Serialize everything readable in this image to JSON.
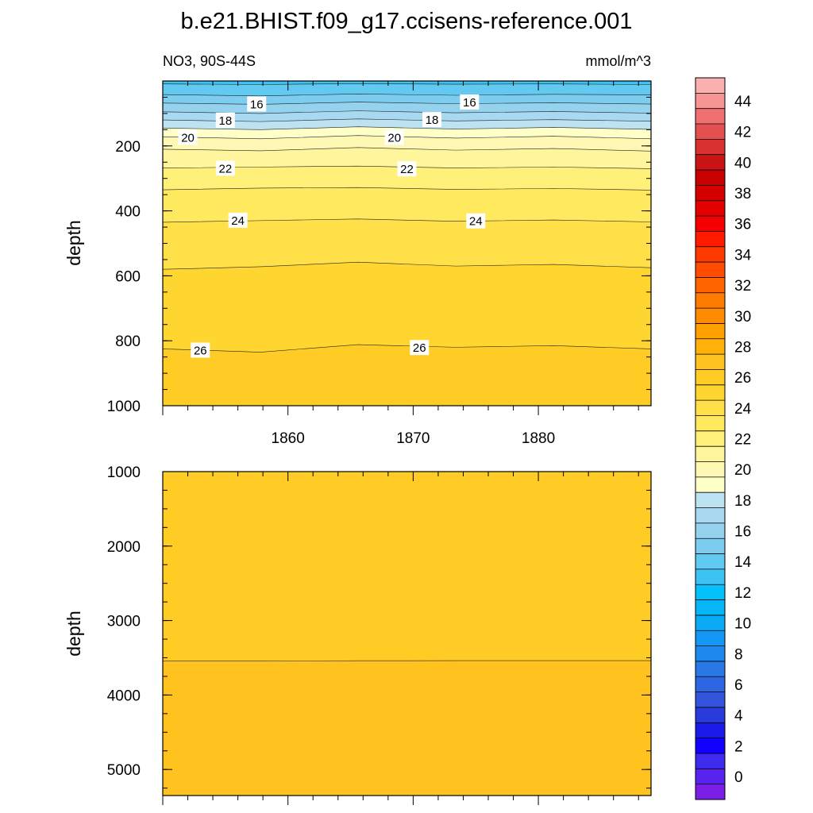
{
  "figure": {
    "title": "b.e21.BHIST.f09_g17.ccisens-reference.001",
    "left_subtitle": "NO3, 90S-44S",
    "right_subtitle": "mmol/m^3"
  },
  "chart_data": [
    {
      "type": "heatmap",
      "panel": "upper",
      "title": "b.e21.BHIST.f09_g17.ccisens-reference.001",
      "variable": "NO3",
      "region": "90S-44S",
      "units": "mmol/m^3",
      "xlabel": "",
      "ylabel": "depth",
      "xlim": [
        1850,
        1889
      ],
      "ylim": [
        1000,
        0
      ],
      "y_reversed": true,
      "x_ticks": [
        1860,
        1870,
        1880
      ],
      "y_ticks": [
        200,
        400,
        600,
        800,
        1000
      ],
      "contour_lines": [
        {
          "level": 14,
          "depth": [
            9,
            11,
            8,
            10,
            9,
            11
          ]
        },
        {
          "level": 15,
          "depth": [
            42,
            46,
            40,
            44,
            41,
            43
          ]
        },
        {
          "level": 16,
          "depth": [
            68,
            72,
            65,
            70,
            67,
            71
          ]
        },
        {
          "level": 17,
          "depth": [
            95,
            100,
            92,
            98,
            94,
            99
          ]
        },
        {
          "level": 18,
          "depth": [
            120,
            125,
            117,
            123,
            119,
            124
          ]
        },
        {
          "level": 19,
          "depth": [
            145,
            150,
            141,
            148,
            143,
            149
          ]
        },
        {
          "level": 20,
          "depth": [
            172,
            178,
            168,
            176,
            170,
            178
          ]
        },
        {
          "level": 21,
          "depth": [
            210,
            215,
            205,
            213,
            208,
            216
          ]
        },
        {
          "level": 22,
          "depth": [
            268,
            265,
            262,
            268,
            265,
            270
          ]
        },
        {
          "level": 23,
          "depth": [
            335,
            330,
            328,
            334,
            331,
            336
          ]
        },
        {
          "level": 24,
          "depth": [
            435,
            430,
            425,
            432,
            428,
            434
          ]
        },
        {
          "level": 25,
          "depth": [
            580,
            572,
            558,
            570,
            565,
            575
          ]
        },
        {
          "level": 26,
          "depth": [
            825,
            835,
            812,
            820,
            815,
            825
          ]
        }
      ],
      "contour_labels": [
        {
          "text": "16",
          "x": 1857.5,
          "y": 72
        },
        {
          "text": "16",
          "x": 1874.5,
          "y": 66
        },
        {
          "text": "18",
          "x": 1855.0,
          "y": 122
        },
        {
          "text": "18",
          "x": 1871.5,
          "y": 120
        },
        {
          "text": "20",
          "x": 1852.0,
          "y": 175
        },
        {
          "text": "20",
          "x": 1868.5,
          "y": 175
        },
        {
          "text": "22",
          "x": 1855.0,
          "y": 270
        },
        {
          "text": "22",
          "x": 1869.5,
          "y": 272
        },
        {
          "text": "24",
          "x": 1856.0,
          "y": 430
        },
        {
          "text": "24",
          "x": 1875.0,
          "y": 432
        },
        {
          "text": "26",
          "x": 1853.0,
          "y": 830
        },
        {
          "text": "26",
          "x": 1870.5,
          "y": 822
        }
      ]
    },
    {
      "type": "heatmap",
      "panel": "lower",
      "xlabel": "",
      "ylabel": "depth",
      "xlim": [
        1850,
        1889
      ],
      "ylim": [
        5350,
        1000
      ],
      "y_reversed": true,
      "y_ticks": [
        1000,
        2000,
        3000,
        4000,
        5000
      ],
      "contour_lines": [
        {
          "level": 27,
          "depth": [
            3545,
            3545,
            3540,
            3538,
            3538,
            3538
          ]
        }
      ]
    }
  ],
  "colorbar": {
    "min": -1,
    "max": 46,
    "step": 1,
    "labels": [
      "0",
      "2",
      "4",
      "6",
      "8",
      "10",
      "12",
      "14",
      "16",
      "18",
      "20",
      "22",
      "24",
      "26",
      "28",
      "30",
      "32",
      "34",
      "36",
      "38",
      "40",
      "42",
      "44"
    ],
    "label_values": [
      0,
      2,
      4,
      6,
      8,
      10,
      12,
      14,
      16,
      18,
      20,
      22,
      24,
      26,
      28,
      30,
      32,
      34,
      36,
      38,
      40,
      42,
      44
    ],
    "colors": [
      "#7b1fe8",
      "#5a22ee",
      "#3f2bf0",
      "#1200ff",
      "#1a1ae8",
      "#2a3bdb",
      "#3355dd",
      "#2c66e2",
      "#2a78e8",
      "#1e88ee",
      "#1199f5",
      "#0aaaf7",
      "#08b6f8",
      "#06c0fc",
      "#3cc3f3",
      "#62c9f0",
      "#7dcdf0",
      "#94d2ee",
      "#a9d9f0",
      "#bde3f3",
      "#ffffc8",
      "#fff8b4",
      "#fff59d",
      "#fff07a",
      "#ffe95f",
      "#ffe049",
      "#ffd52f",
      "#ffcc26",
      "#ffc21f",
      "#ffb00a",
      "#ffa000",
      "#ff8c00",
      "#ff7a00",
      "#ff6400",
      "#ff4c00",
      "#ff3a00",
      "#ff1a00",
      "#f40000",
      "#e50000",
      "#d40000",
      "#c80000",
      "#c91515",
      "#d93030",
      "#e45050",
      "#ef7070",
      "#f59595",
      "#fbb0b0"
    ]
  }
}
